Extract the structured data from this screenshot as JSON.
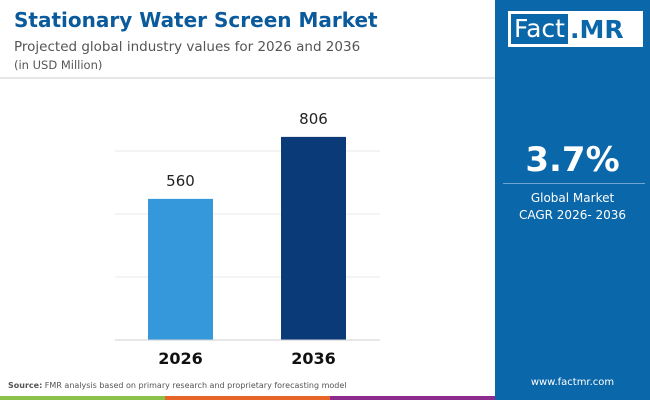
{
  "header": {
    "title": "Stationary Water Screen Market",
    "subtitle": "Projected global industry values for 2026 and 2036",
    "unit": "(in USD Million)"
  },
  "logo": {
    "part1": "Fact",
    "part2": ".MR"
  },
  "cagr": {
    "value": "3.7%",
    "label1": "Global Market",
    "label2": "CAGR 2026- 2036"
  },
  "footer": {
    "source_label": "Source:",
    "source_text": " FMR analysis based on primary research and proprietary forecasting model",
    "website": "www.factmr.com"
  },
  "colors": {
    "brand": "#0a67a9",
    "bar_2026": "#3498db",
    "bar_2036": "#0b3a78",
    "stripes": [
      "#8bc34a",
      "#e8652a",
      "#8e2c8e",
      "#0a67a9"
    ]
  },
  "chart_data": {
    "type": "bar",
    "categories": [
      "2026",
      "2036"
    ],
    "values": [
      560,
      806
    ],
    "title": "Stationary Water Screen Market",
    "ylim": [
      0,
      1000
    ],
    "grid": true,
    "gridlines": [
      250,
      500,
      750
    ]
  }
}
